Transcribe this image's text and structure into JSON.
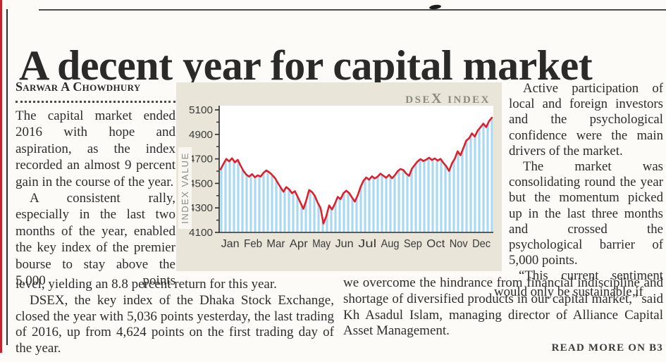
{
  "page": {
    "headline": "A decent year for capital market",
    "byline": "Sarwar A Chowdhury",
    "read_more": "READ MORE ON B3"
  },
  "left_column": {
    "para1": "The capital market ended 2016 with hope and aspiration, as the index recorded an almost 9 percent gain in the course of the year.",
    "para2": "A consistent rally, especially in the last two months of the year, enabled the key index of the premier bourse to stay above the 5,000 points"
  },
  "right_column": {
    "para1": "Active participation of local and foreign investors and the psychological confidence were the main drivers of the market.",
    "para2": "The market was consolidating round the year but the momentum picked up in the last three months and crossed the psychological barrier of 5,000 points.",
    "para3_line1": "“This current sentiment",
    "para3_line2": "would only be sustainable if"
  },
  "bottom_left": {
    "para1": "level, yielding an 8.8 percent return for this year.",
    "para2": "DSEX, the key index of the Dhaka Stock Exchange, closed the year with 5,036 points yesterday, the last trading of 2016, up from 4,624 points on the first trading day of the year."
  },
  "bottom_right": {
    "para1": "we overcome the hindrance from financial indiscipline and shortage of diversified products in our capital market,” said Kh Asadul Islam, managing director of Alliance Capital Asset Management."
  },
  "chart_data": {
    "type": "area",
    "title": "DSEX INDEX",
    "title_parts": {
      "pre": "DSE",
      "x": "X",
      "post": " INDEX"
    },
    "ylabel": "INDEX VALUE",
    "xlabel_ticks": [
      "Jan",
      "Feb",
      "Mar",
      "Apr",
      "May",
      "Jun",
      "Jul",
      "Aug",
      "Sep",
      "Oct",
      "Nov",
      "Dec"
    ],
    "y_ticks": [
      5100,
      4900,
      4700,
      4500,
      4300,
      4100
    ],
    "ylim": [
      4100,
      5100
    ],
    "x_range_months": [
      0,
      12
    ],
    "grid": false,
    "legend": "none",
    "annotations": {
      "first_trading_day": 4624,
      "last_trading_day": 5036,
      "may_low_approx": 4170
    },
    "series": [
      {
        "name": "DSEX index, 2016 daily path (points)",
        "sampling": "96 evenly spaced points, Jan through Dec",
        "values": [
          4615,
          4660,
          4700,
          4680,
          4705,
          4672,
          4692,
          4645,
          4602,
          4572,
          4555,
          4576,
          4550,
          4566,
          4556,
          4586,
          4606,
          4592,
          4570,
          4545,
          4505,
          4468,
          4432,
          4470,
          4452,
          4420,
          4436,
          4390,
          4340,
          4292,
          4362,
          4446,
          4430,
          4398,
          4342,
          4300,
          4172,
          4232,
          4320,
          4288,
          4332,
          4390,
          4372,
          4420,
          4440,
          4422,
          4385,
          4352,
          4402,
          4470,
          4520,
          4548,
          4530,
          4558,
          4540,
          4556,
          4580,
          4562,
          4546,
          4570,
          4542,
          4566,
          4600,
          4618,
          4608,
          4580,
          4562,
          4620,
          4652,
          4680,
          4698,
          4682,
          4694,
          4710,
          4690,
          4704,
          4686,
          4700,
          4668,
          4640,
          4602,
          4662,
          4702,
          4762,
          4730,
          4788,
          4848,
          4868,
          4908,
          4882,
          4930,
          4958,
          4988,
          4960,
          5008,
          5036
        ]
      }
    ],
    "styles": {
      "line_color": "#de1f2d",
      "stripe_color": "#a9d9ee",
      "panel_bg": "#e9e5d8",
      "plot_bg": "#ffffff",
      "label_gray": "#8b8a80",
      "axis_color": "#2b2b2b",
      "tick_text_color": "#3a3a3a",
      "edge_strip_red": "#c5222b"
    }
  }
}
